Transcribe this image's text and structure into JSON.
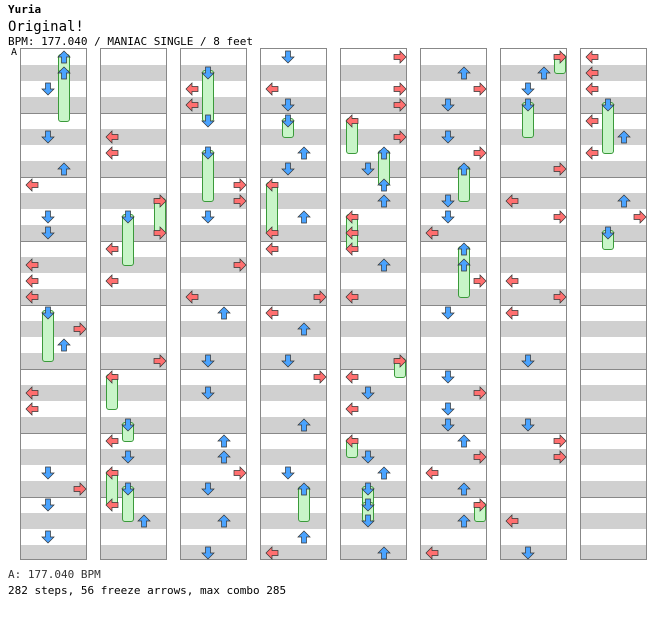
{
  "header": {
    "artist": "Yuria",
    "title": "Original!",
    "info": "BPM: 177.040 / MANIAC SINGLE / 8 feet",
    "marker": "A"
  },
  "footer": {
    "bpm": "A: 177.040 BPM",
    "stats": "282 steps, 56 freeze arrows, max combo 285"
  },
  "colors": {
    "left_right_arrow": "#ff6f6f",
    "down_up_arrow": "#4aa3ff",
    "freeze": "#8ce08c",
    "grid_stripe": "#d0d0d0"
  },
  "columns": 8,
  "lanes": [
    "left",
    "down",
    "up",
    "right"
  ]
}
